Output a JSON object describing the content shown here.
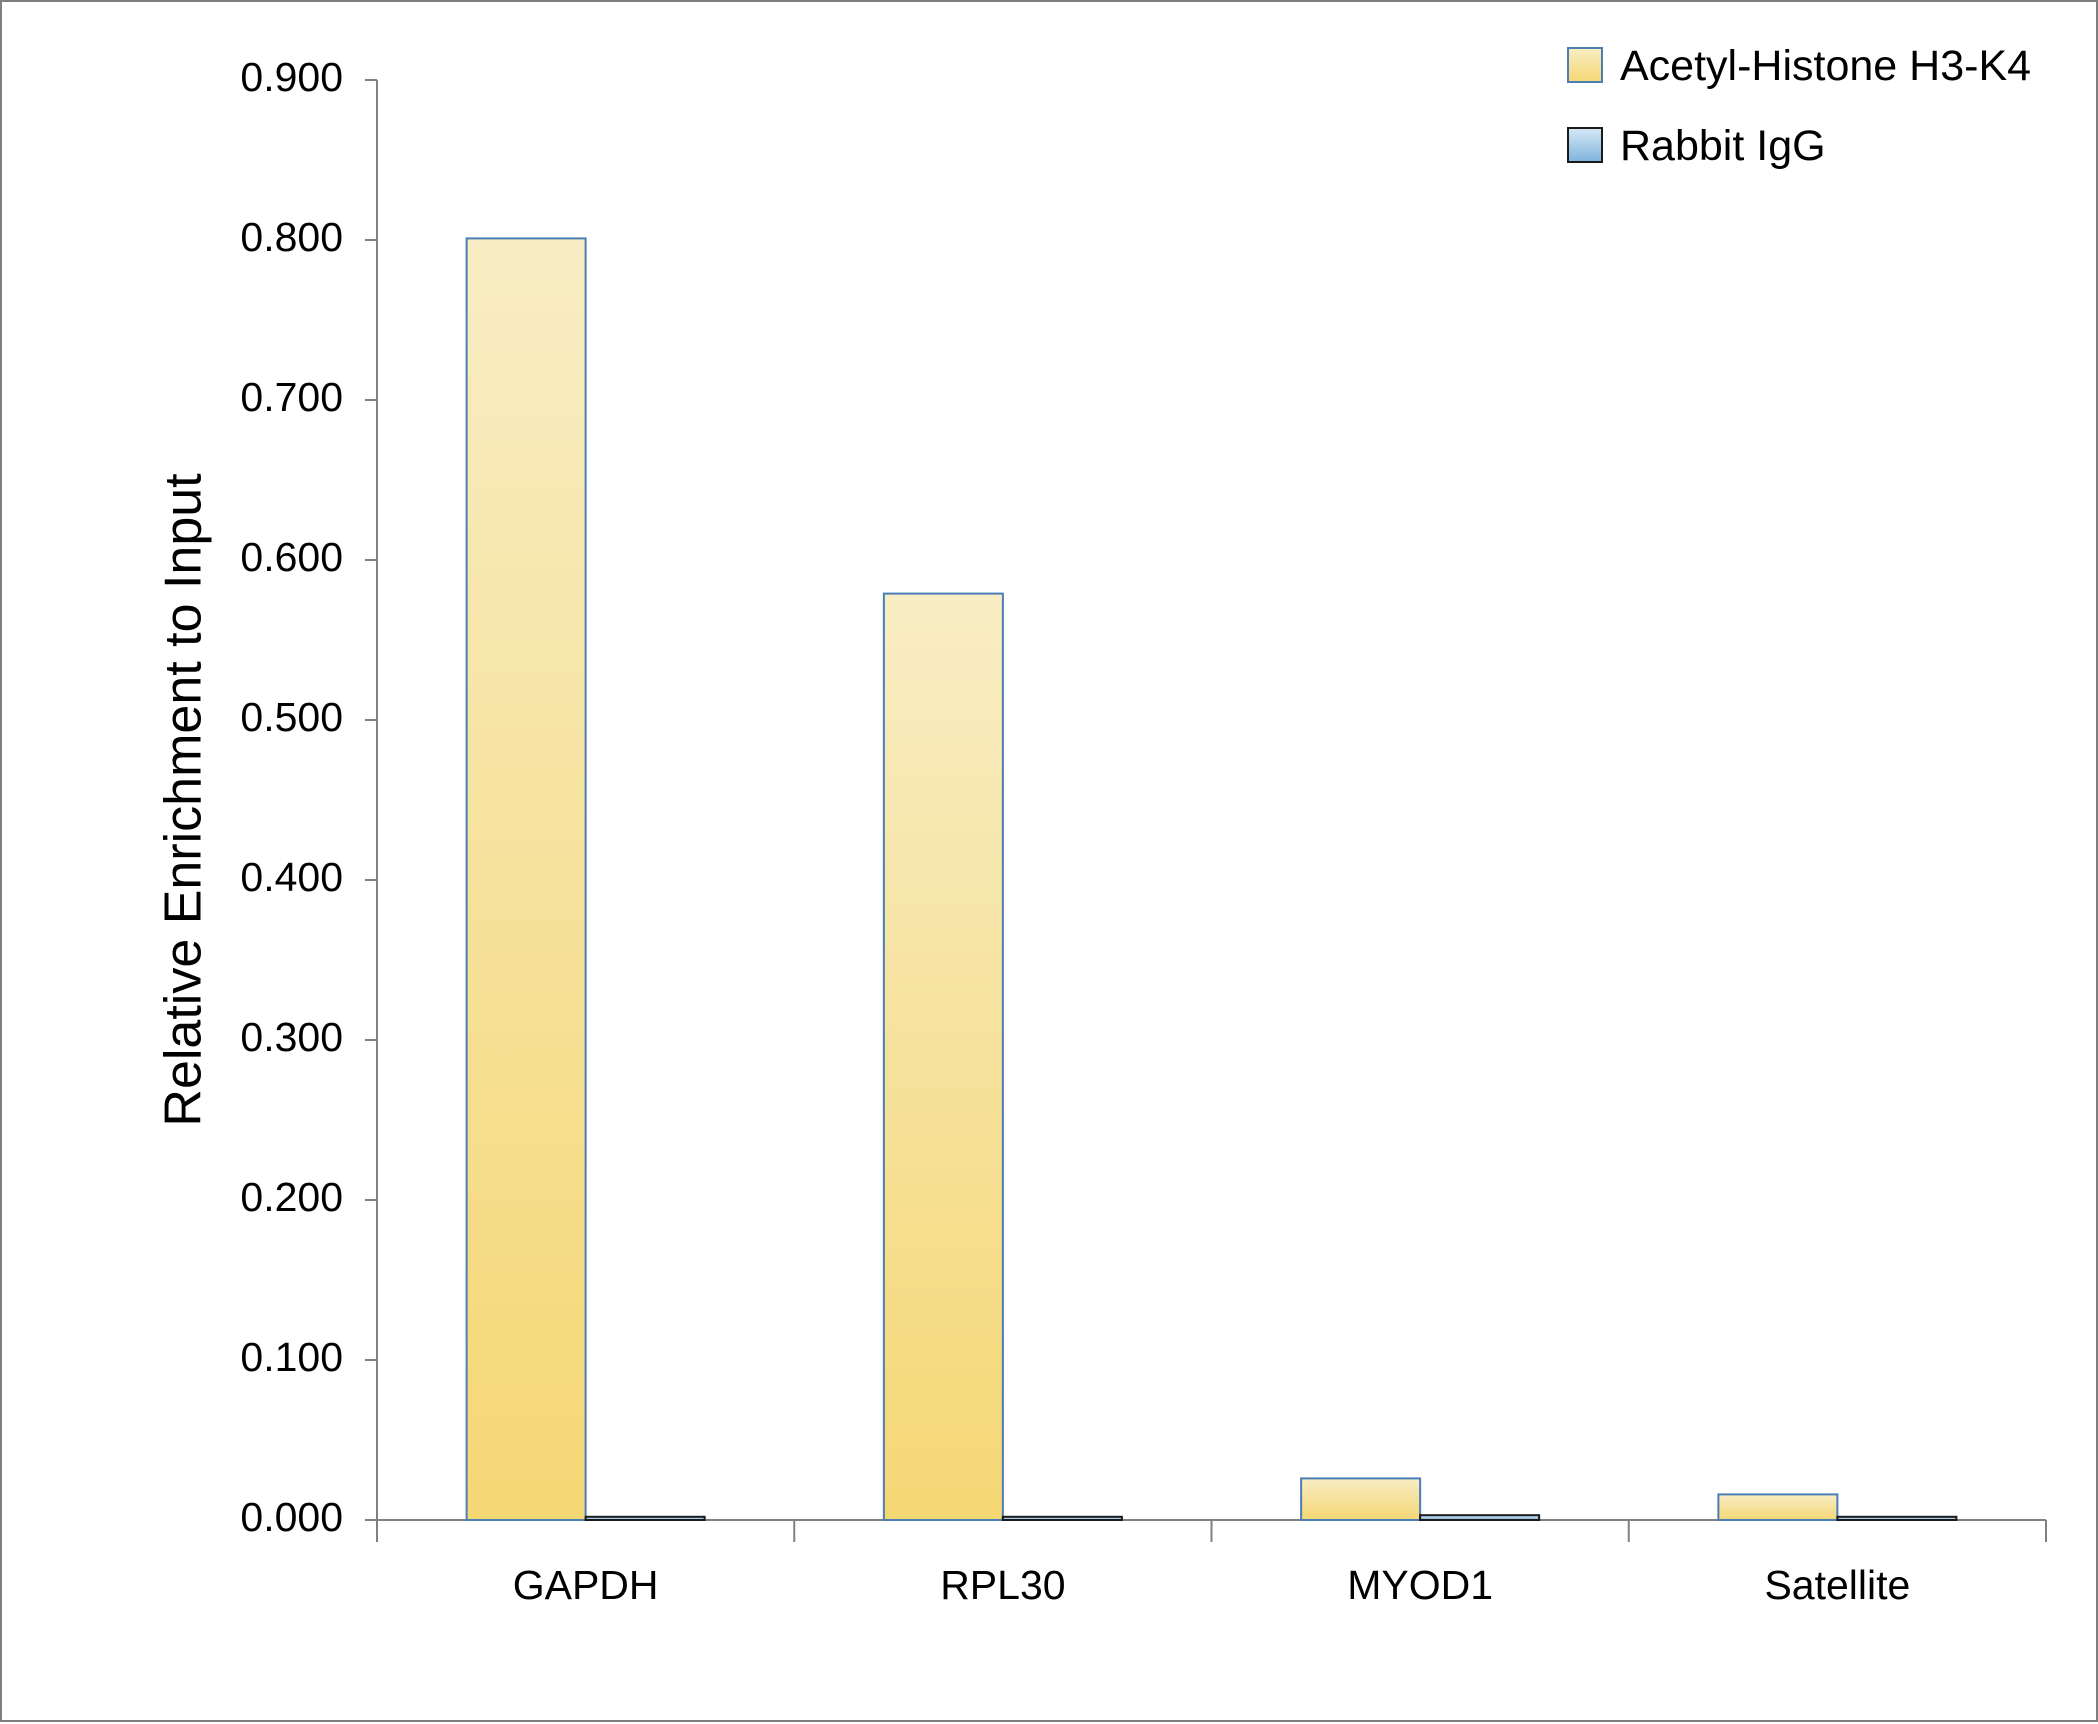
{
  "chart_data": {
    "type": "bar",
    "title": "",
    "xlabel": "",
    "ylabel": "Relative Enrichment to Input",
    "ylim": [
      0,
      0.9
    ],
    "yticks": [
      "0.000",
      "0.100",
      "0.200",
      "0.300",
      "0.400",
      "0.500",
      "0.600",
      "0.700",
      "0.800",
      "0.900"
    ],
    "categories": [
      "GAPDH",
      "RPL30",
      "MYOD1",
      "Satellite"
    ],
    "series": [
      {
        "name": "Acetyl-Histone H3-K4",
        "values": [
          0.801,
          0.579,
          0.026,
          0.016
        ],
        "color_top": "#f8edc4",
        "color_bottom": "#f5d774",
        "stroke": "#4a7eb5"
      },
      {
        "name": "Rabbit IgG",
        "values": [
          0.002,
          0.002,
          0.003,
          0.002
        ],
        "color_top": "#d6e9f6",
        "color_bottom": "#7fb3dc",
        "stroke": "#1a1a1a"
      }
    ],
    "grid": false,
    "legend_position": "top-right"
  }
}
